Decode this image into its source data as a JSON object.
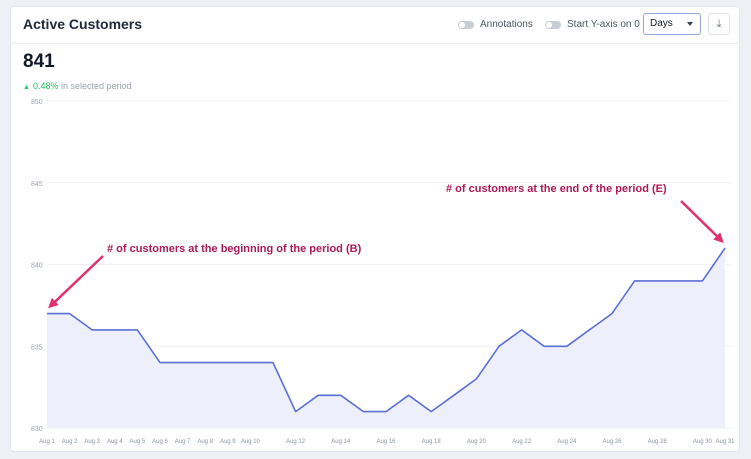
{
  "header": {
    "title": "Active Customers",
    "annotations_label": "Annotations",
    "start_y_label": "Start Y-axis on 0",
    "period_select": "Days",
    "download_icon": "download-icon"
  },
  "summary": {
    "value": "841",
    "change_pct": "0.48%",
    "change_text": "in selected period"
  },
  "annotations": {
    "begin": "# of customers at the beginning of the period (B)",
    "end": "# of customers at the end of the period (E)"
  },
  "chart_data": {
    "type": "area",
    "x": [
      "Aug 1",
      "Aug 2",
      "Aug 3",
      "Aug 4",
      "Aug 5",
      "Aug 6",
      "Aug 7",
      "Aug 8",
      "Aug 9",
      "Aug 10",
      "Aug 11",
      "Aug 12",
      "Aug 13",
      "Aug 14",
      "Aug 15",
      "Aug 16",
      "Aug 17",
      "Aug 18",
      "Aug 19",
      "Aug 20",
      "Aug 21",
      "Aug 22",
      "Aug 23",
      "Aug 24",
      "Aug 25",
      "Aug 26",
      "Aug 27",
      "Aug 28",
      "Aug 29",
      "Aug 30",
      "Aug 31"
    ],
    "tick_labels": [
      "Aug 1",
      "Aug 2",
      "Aug 3",
      "Aug 4",
      "Aug 5",
      "Aug 6",
      "Aug 7",
      "Aug 8",
      "Aug 9",
      "Aug 10",
      "",
      "Aug 12",
      "",
      "Aug 14",
      "",
      "Aug 16",
      "",
      "Aug 18",
      "",
      "Aug 20",
      "",
      "Aug 22",
      "",
      "Aug 24",
      "",
      "Aug 26",
      "",
      "Aug 28",
      "",
      "Aug 30",
      "Aug 31"
    ],
    "values": [
      837,
      837,
      836,
      836,
      836,
      834,
      834,
      834,
      834,
      834,
      834,
      831,
      832,
      832,
      831,
      831,
      832,
      831,
      832,
      833,
      835,
      836,
      835,
      835,
      836,
      837,
      839,
      839,
      839,
      839,
      841
    ],
    "yticks": [
      830,
      835,
      840,
      845,
      850
    ],
    "ylim": [
      830,
      850
    ],
    "grid": true,
    "line_color": "#5a6fd6",
    "fill_color": "#edf0fb",
    "annotation_color": "#e0306f"
  }
}
